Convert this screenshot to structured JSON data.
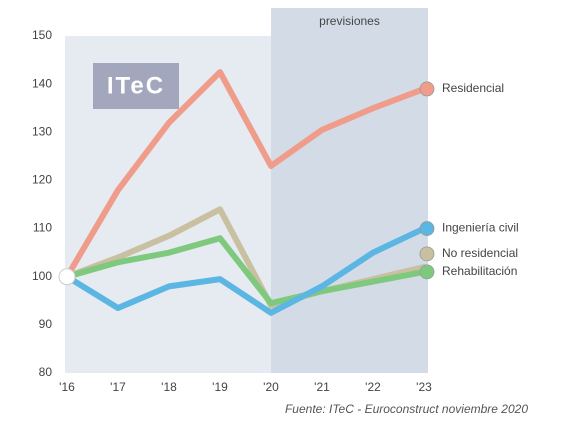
{
  "chart_data": {
    "type": "line",
    "logo": "ITeC",
    "forecast_label": "previsiones",
    "forecast_from": "'20",
    "source": "Fuente: ITeC - Euroconstruct noviembre 2020",
    "categories": [
      "'16",
      "'17",
      "'18",
      "'19",
      "'20",
      "'21",
      "'22",
      "'23"
    ],
    "ylim": [
      80,
      150
    ],
    "yticks": [
      80,
      90,
      100,
      110,
      120,
      130,
      140,
      150
    ],
    "series": [
      {
        "name": "Residencial",
        "color": "#f09c8a",
        "values": [
          100,
          118,
          132,
          142.5,
          123,
          130.5,
          135,
          139
        ]
      },
      {
        "name": "Ingeniería civil",
        "color": "#5bb6e3",
        "values": [
          100,
          93.5,
          98,
          99.5,
          92.5,
          98,
          105,
          110
        ]
      },
      {
        "name": "No residencial",
        "color": "#c8c0a0",
        "values": [
          100,
          104,
          108.5,
          114,
          94,
          97,
          99.5,
          102
        ]
      },
      {
        "name": "Rehabilitación",
        "color": "#7fc97f",
        "values": [
          100,
          103,
          105,
          108,
          94.5,
          97,
          99,
          101
        ]
      }
    ]
  }
}
